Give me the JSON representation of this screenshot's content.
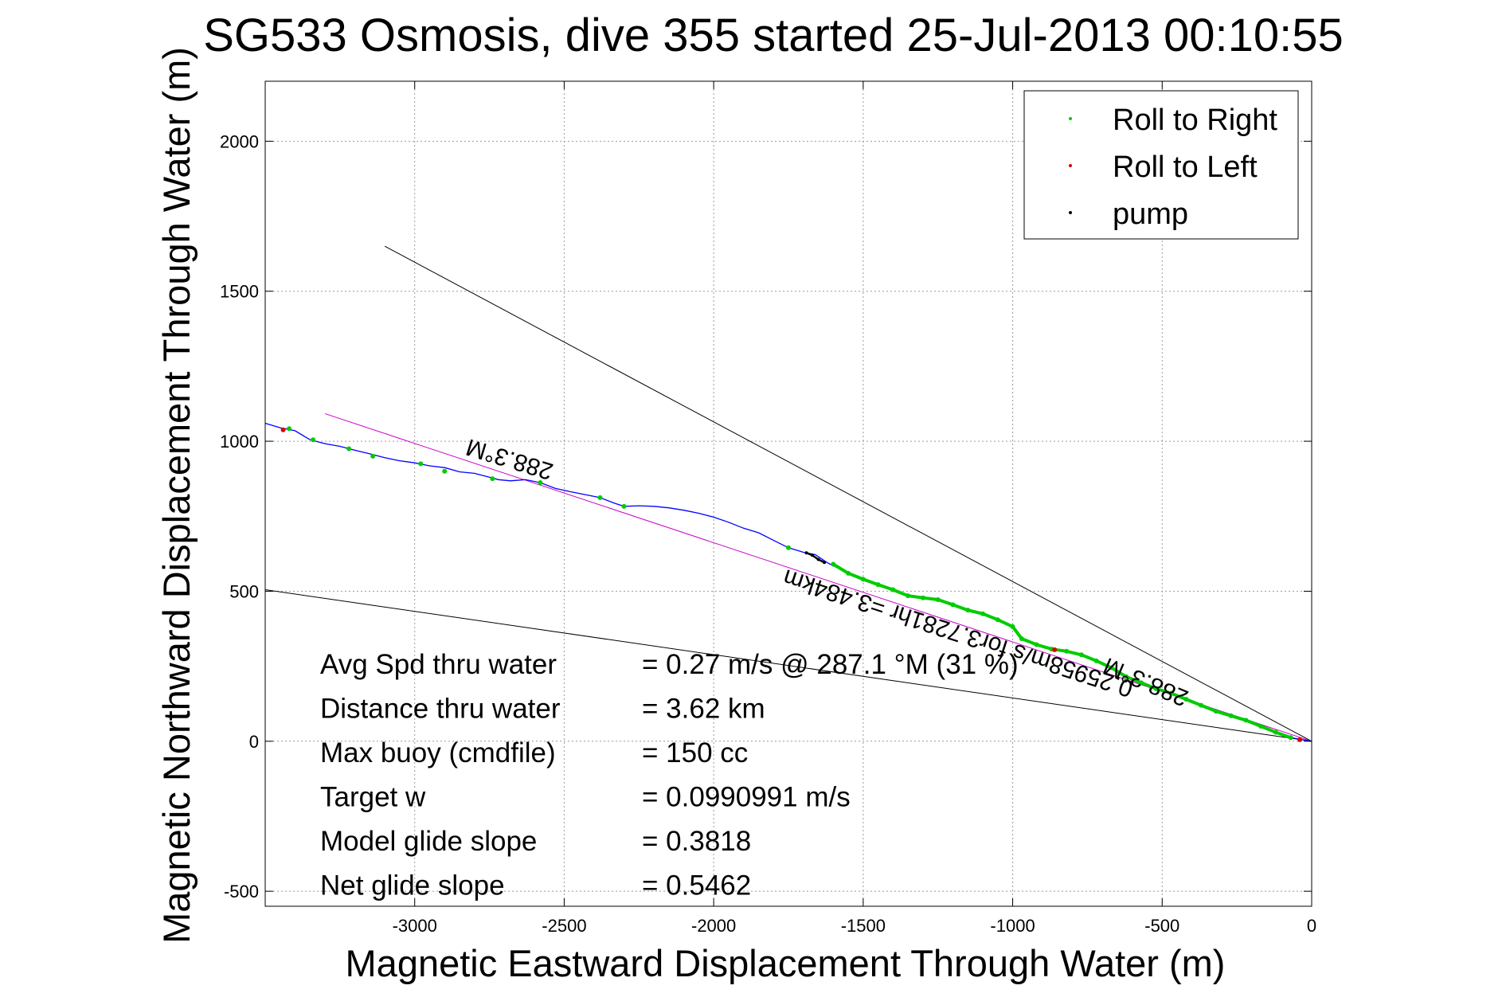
{
  "chart_data": {
    "type": "scatter",
    "title": "SG533 Osmosis, dive 355 started 25-Jul-2013 00:10:55",
    "xlabel": "Magnetic Eastward Displacement Through Water (m)",
    "ylabel": "Magnetic Northward Displacement Through Water (m)",
    "xlim": [
      -3500,
      0
    ],
    "ylim": [
      -550,
      2200
    ],
    "xticks": [
      -3000,
      -2500,
      -2000,
      -1500,
      -1000,
      -500,
      0
    ],
    "yticks": [
      -500,
      0,
      500,
      1000,
      1500,
      2000
    ],
    "grid": true,
    "legend_position": "top-right",
    "legend": [
      {
        "label": "Roll to Right",
        "color": "#00cc00"
      },
      {
        "label": "Roll to Left",
        "color": "#dd0000"
      },
      {
        "label": "pump",
        "color": "#000000"
      }
    ],
    "track_color": "#0000ff",
    "track": [
      {
        "x": -3500,
        "y": 1060
      },
      {
        "x": -3450,
        "y": 1045
      },
      {
        "x": -3400,
        "y": 1035
      },
      {
        "x": -3350,
        "y": 1005
      },
      {
        "x": -3300,
        "y": 992
      },
      {
        "x": -3250,
        "y": 983
      },
      {
        "x": -3200,
        "y": 970
      },
      {
        "x": -3150,
        "y": 958
      },
      {
        "x": -3100,
        "y": 945
      },
      {
        "x": -3050,
        "y": 935
      },
      {
        "x": -3000,
        "y": 928
      },
      {
        "x": -2950,
        "y": 918
      },
      {
        "x": -2900,
        "y": 912
      },
      {
        "x": -2850,
        "y": 898
      },
      {
        "x": -2800,
        "y": 893
      },
      {
        "x": -2750,
        "y": 880
      },
      {
        "x": -2720,
        "y": 872
      },
      {
        "x": -2680,
        "y": 868
      },
      {
        "x": -2630,
        "y": 872
      },
      {
        "x": -2580,
        "y": 862
      },
      {
        "x": -2530,
        "y": 843
      },
      {
        "x": -2480,
        "y": 832
      },
      {
        "x": -2420,
        "y": 820
      },
      {
        "x": -2380,
        "y": 812
      },
      {
        "x": -2330,
        "y": 793
      },
      {
        "x": -2300,
        "y": 783
      },
      {
        "x": -2250,
        "y": 785
      },
      {
        "x": -2200,
        "y": 783
      },
      {
        "x": -2150,
        "y": 778
      },
      {
        "x": -2100,
        "y": 770
      },
      {
        "x": -2050,
        "y": 760
      },
      {
        "x": -2000,
        "y": 747
      },
      {
        "x": -1950,
        "y": 730
      },
      {
        "x": -1900,
        "y": 710
      },
      {
        "x": -1850,
        "y": 695
      },
      {
        "x": -1800,
        "y": 670
      },
      {
        "x": -1750,
        "y": 645
      },
      {
        "x": -1700,
        "y": 630
      },
      {
        "x": -1660,
        "y": 622
      },
      {
        "x": -1620,
        "y": 595
      },
      {
        "x": -1580,
        "y": 575
      },
      {
        "x": -1540,
        "y": 555
      },
      {
        "x": -1500,
        "y": 540
      },
      {
        "x": -1450,
        "y": 520
      },
      {
        "x": -1400,
        "y": 505
      },
      {
        "x": -1350,
        "y": 482
      },
      {
        "x": -1300,
        "y": 478
      },
      {
        "x": -1250,
        "y": 472
      },
      {
        "x": -1200,
        "y": 455
      },
      {
        "x": -1150,
        "y": 435
      },
      {
        "x": -1100,
        "y": 425
      },
      {
        "x": -1050,
        "y": 405
      },
      {
        "x": -1000,
        "y": 380
      },
      {
        "x": -970,
        "y": 340
      },
      {
        "x": -920,
        "y": 320
      },
      {
        "x": -870,
        "y": 305
      },
      {
        "x": -820,
        "y": 300
      },
      {
        "x": -770,
        "y": 288
      },
      {
        "x": -720,
        "y": 268
      },
      {
        "x": -670,
        "y": 245
      },
      {
        "x": -620,
        "y": 215
      },
      {
        "x": -570,
        "y": 195
      },
      {
        "x": -520,
        "y": 175
      },
      {
        "x": -470,
        "y": 160
      },
      {
        "x": -420,
        "y": 140
      },
      {
        "x": -370,
        "y": 120
      },
      {
        "x": -320,
        "y": 100
      },
      {
        "x": -270,
        "y": 85
      },
      {
        "x": -220,
        "y": 70
      },
      {
        "x": -170,
        "y": 50
      },
      {
        "x": -120,
        "y": 30
      },
      {
        "x": -70,
        "y": 12
      },
      {
        "x": -30,
        "y": 5
      },
      {
        "x": 0,
        "y": 0
      }
    ],
    "roll_to_right": [
      {
        "x": -3420,
        "y": 1042
      },
      {
        "x": -3340,
        "y": 1005
      },
      {
        "x": -3220,
        "y": 975
      },
      {
        "x": -3140,
        "y": 950
      },
      {
        "x": -2980,
        "y": 925
      },
      {
        "x": -2900,
        "y": 900
      },
      {
        "x": -2740,
        "y": 875
      },
      {
        "x": -2580,
        "y": 862
      },
      {
        "x": -2380,
        "y": 812
      },
      {
        "x": -2300,
        "y": 783
      },
      {
        "x": -1750,
        "y": 645
      },
      {
        "x": -1600,
        "y": 590
      },
      {
        "x": -1550,
        "y": 560
      },
      {
        "x": -1500,
        "y": 540
      },
      {
        "x": -1450,
        "y": 522
      },
      {
        "x": -1400,
        "y": 505
      },
      {
        "x": -1350,
        "y": 485
      },
      {
        "x": -1300,
        "y": 478
      },
      {
        "x": -1250,
        "y": 472
      },
      {
        "x": -1200,
        "y": 455
      },
      {
        "x": -1150,
        "y": 437
      },
      {
        "x": -1100,
        "y": 425
      },
      {
        "x": -1050,
        "y": 405
      },
      {
        "x": -1000,
        "y": 382
      },
      {
        "x": -970,
        "y": 342
      },
      {
        "x": -920,
        "y": 322
      },
      {
        "x": -870,
        "y": 307
      },
      {
        "x": -820,
        "y": 300
      },
      {
        "x": -770,
        "y": 288
      },
      {
        "x": -720,
        "y": 268
      },
      {
        "x": -670,
        "y": 245
      },
      {
        "x": -620,
        "y": 215
      },
      {
        "x": -570,
        "y": 195
      },
      {
        "x": -520,
        "y": 175
      },
      {
        "x": -470,
        "y": 160
      },
      {
        "x": -420,
        "y": 140
      },
      {
        "x": -370,
        "y": 120
      },
      {
        "x": -320,
        "y": 100
      },
      {
        "x": -270,
        "y": 85
      },
      {
        "x": -220,
        "y": 70
      },
      {
        "x": -170,
        "y": 50
      },
      {
        "x": -120,
        "y": 30
      },
      {
        "x": -70,
        "y": 12
      }
    ],
    "roll_to_left": [
      {
        "x": -3440,
        "y": 1038
      },
      {
        "x": -860,
        "y": 305
      },
      {
        "x": -40,
        "y": 5
      }
    ],
    "pump": [
      {
        "x": -1690,
        "y": 628
      },
      {
        "x": -1670,
        "y": 620
      },
      {
        "x": -1650,
        "y": 606
      },
      {
        "x": -1630,
        "y": 596
      }
    ],
    "reference_lines": [
      {
        "color": "#000000",
        "from": {
          "x": 0,
          "y": 0
        },
        "to": {
          "x": -3100,
          "y": 1650
        }
      },
      {
        "color": "#000000",
        "from": {
          "x": 0,
          "y": 0
        },
        "to": {
          "x": -3500,
          "y": 505
        }
      },
      {
        "color": "#cc00cc",
        "from": {
          "x": 0,
          "y": 0
        },
        "to": {
          "x": -3300,
          "y": 1092
        }
      }
    ],
    "rotated_labels": [
      {
        "text": "288.3°M",
        "x": -2675,
        "y": 965
      },
      {
        "text": "0.25958m/s for3.7281hr =3.484km",
        "x": -1175,
        "y": 385
      },
      {
        "text": "288.3°M",
        "x": -545,
        "y": 222
      }
    ],
    "stats": [
      {
        "label": "Avg Spd thru water",
        "value": "=  0.27 m/s @ 287.1 °M (31 %)"
      },
      {
        "label": "Distance thru water",
        "value": "=  3.62 km"
      },
      {
        "label": "Max buoy (cmdfile)",
        "value": "= 150 cc"
      },
      {
        "label": "Target w",
        "value": "= 0.0990991 m/s"
      },
      {
        "label": "Model glide slope",
        "value": "= 0.3818"
      },
      {
        "label": "Net glide slope",
        "value": "= 0.5462"
      }
    ]
  }
}
